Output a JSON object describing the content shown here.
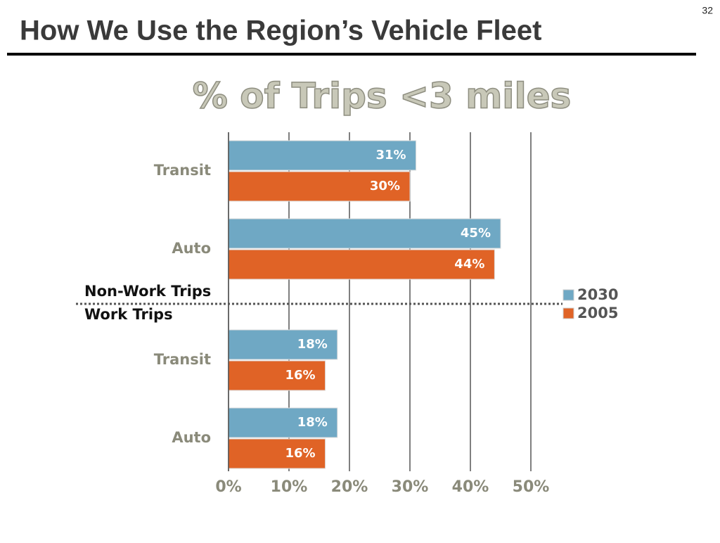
{
  "slide": {
    "title": "How We Use the Region’s Vehicle Fleet",
    "page_number": "32"
  },
  "chart_data": {
    "type": "hbar",
    "title": "% of Trips <3 miles",
    "categories": [
      "Transit",
      "Auto",
      "Transit",
      "Auto"
    ],
    "annotations": [
      "Non-Work Trips",
      "Work Trips"
    ],
    "series": [
      {
        "name": "2030",
        "color": "#6fa8c4",
        "values": [
          31,
          45,
          18,
          18
        ],
        "value_labels": [
          "31%",
          "45%",
          "18%",
          "18%"
        ]
      },
      {
        "name": "2005",
        "color": "#e06326",
        "values": [
          30,
          44,
          16,
          16
        ],
        "value_labels": [
          "30%",
          "44%",
          "16%",
          "16%"
        ]
      }
    ],
    "xlim": [
      0,
      50
    ],
    "xticks": [
      {
        "value": 0,
        "label": "0%"
      },
      {
        "value": 10,
        "label": "10%"
      },
      {
        "value": 20,
        "label": "20%"
      },
      {
        "value": 30,
        "label": "30%"
      },
      {
        "value": 40,
        "label": "40%"
      },
      {
        "value": 50,
        "label": "50%"
      }
    ],
    "grid": true,
    "legend": "right"
  }
}
